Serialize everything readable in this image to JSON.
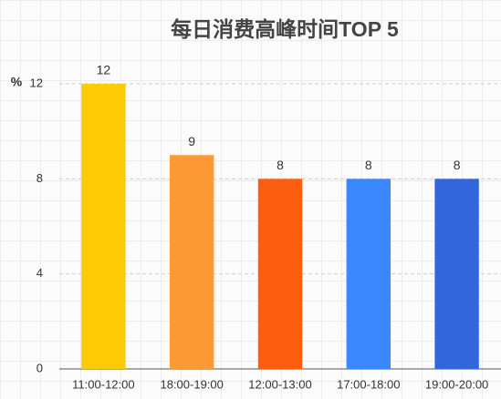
{
  "chart_data": {
    "type": "bar",
    "title": "每日消费高峰时间TOP 5",
    "y_label": "%",
    "categories": [
      "11:00-12:00",
      "18:00-19:00",
      "12:00-13:00",
      "17:00-18:00",
      "19:00-20:00"
    ],
    "values": [
      12,
      9,
      8,
      8,
      8
    ],
    "colors": [
      "#fdcb05",
      "#fd9a35",
      "#fd5d0e",
      "#3d87fd",
      "#3366dd"
    ],
    "ylim": [
      0,
      12
    ],
    "yticks": [
      0,
      4,
      8,
      12
    ],
    "grid": true
  }
}
